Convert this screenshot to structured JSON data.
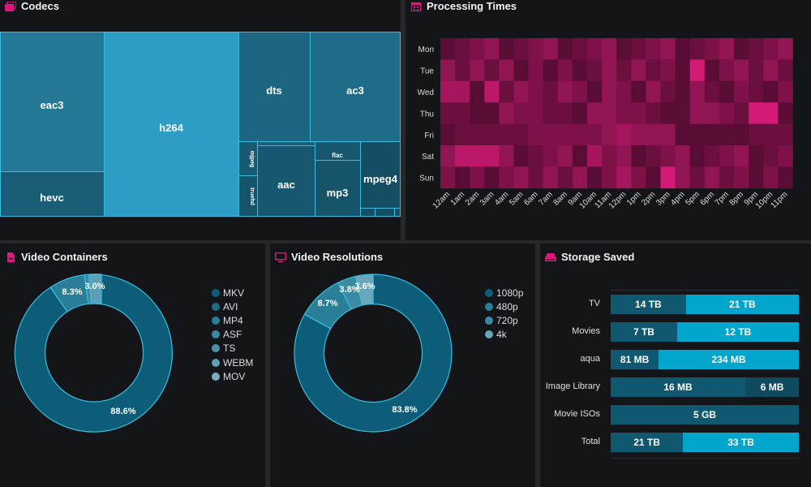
{
  "codecs": {
    "title": "Codecs",
    "tiles": [
      "eac3",
      "h264",
      "hevc",
      "dts",
      "ac3",
      "mjpeg",
      "truehd",
      "aac",
      "flac",
      "mp3",
      "mpeg4"
    ]
  },
  "processing": {
    "title": "Processing Times",
    "days": [
      "Mon",
      "Tue",
      "Wed",
      "Thu",
      "Fri",
      "Sat",
      "Sun"
    ],
    "hours": [
      "12am",
      "1am",
      "2am",
      "3am",
      "4am",
      "5am",
      "6am",
      "7am",
      "8am",
      "9am",
      "10am",
      "11am",
      "12pm",
      "1pm",
      "2pm",
      "3pm",
      "4pm",
      "5pm",
      "6pm",
      "7pm",
      "8pm",
      "9pm",
      "10pm",
      "11pm"
    ]
  },
  "containers": {
    "title": "Video Containers",
    "labels": [
      "88.6%",
      "8.3%",
      "3.0%"
    ],
    "legend": [
      "MKV",
      "AVI",
      "MP4",
      "ASF",
      "TS",
      "WEBM",
      "MOV"
    ]
  },
  "resolutions": {
    "title": "Video Resolutions",
    "labels": [
      "83.8%",
      "8.7%",
      "3.8%",
      "3.6%"
    ],
    "legend": [
      "1080p",
      "480p",
      "720p",
      "4k"
    ]
  },
  "storage": {
    "title": "Storage Saved",
    "rows": [
      {
        "label": "TV",
        "a": "14 TB",
        "b": "21 TB"
      },
      {
        "label": "Movies",
        "a": "7 TB",
        "b": "12 TB"
      },
      {
        "label": "aqua",
        "a": "81 MB",
        "b": "234 MB"
      },
      {
        "label": "Image Library",
        "a": "16 MB",
        "b": "6 MB"
      },
      {
        "label": "Movie ISOs",
        "a": "5 GB"
      },
      {
        "label": "Total",
        "a": "21 TB",
        "b": "33 TB"
      }
    ]
  },
  "colors": {
    "accent": "#e0157f",
    "teal": "#02a6cc",
    "dark_teal": "#0f5870"
  }
}
